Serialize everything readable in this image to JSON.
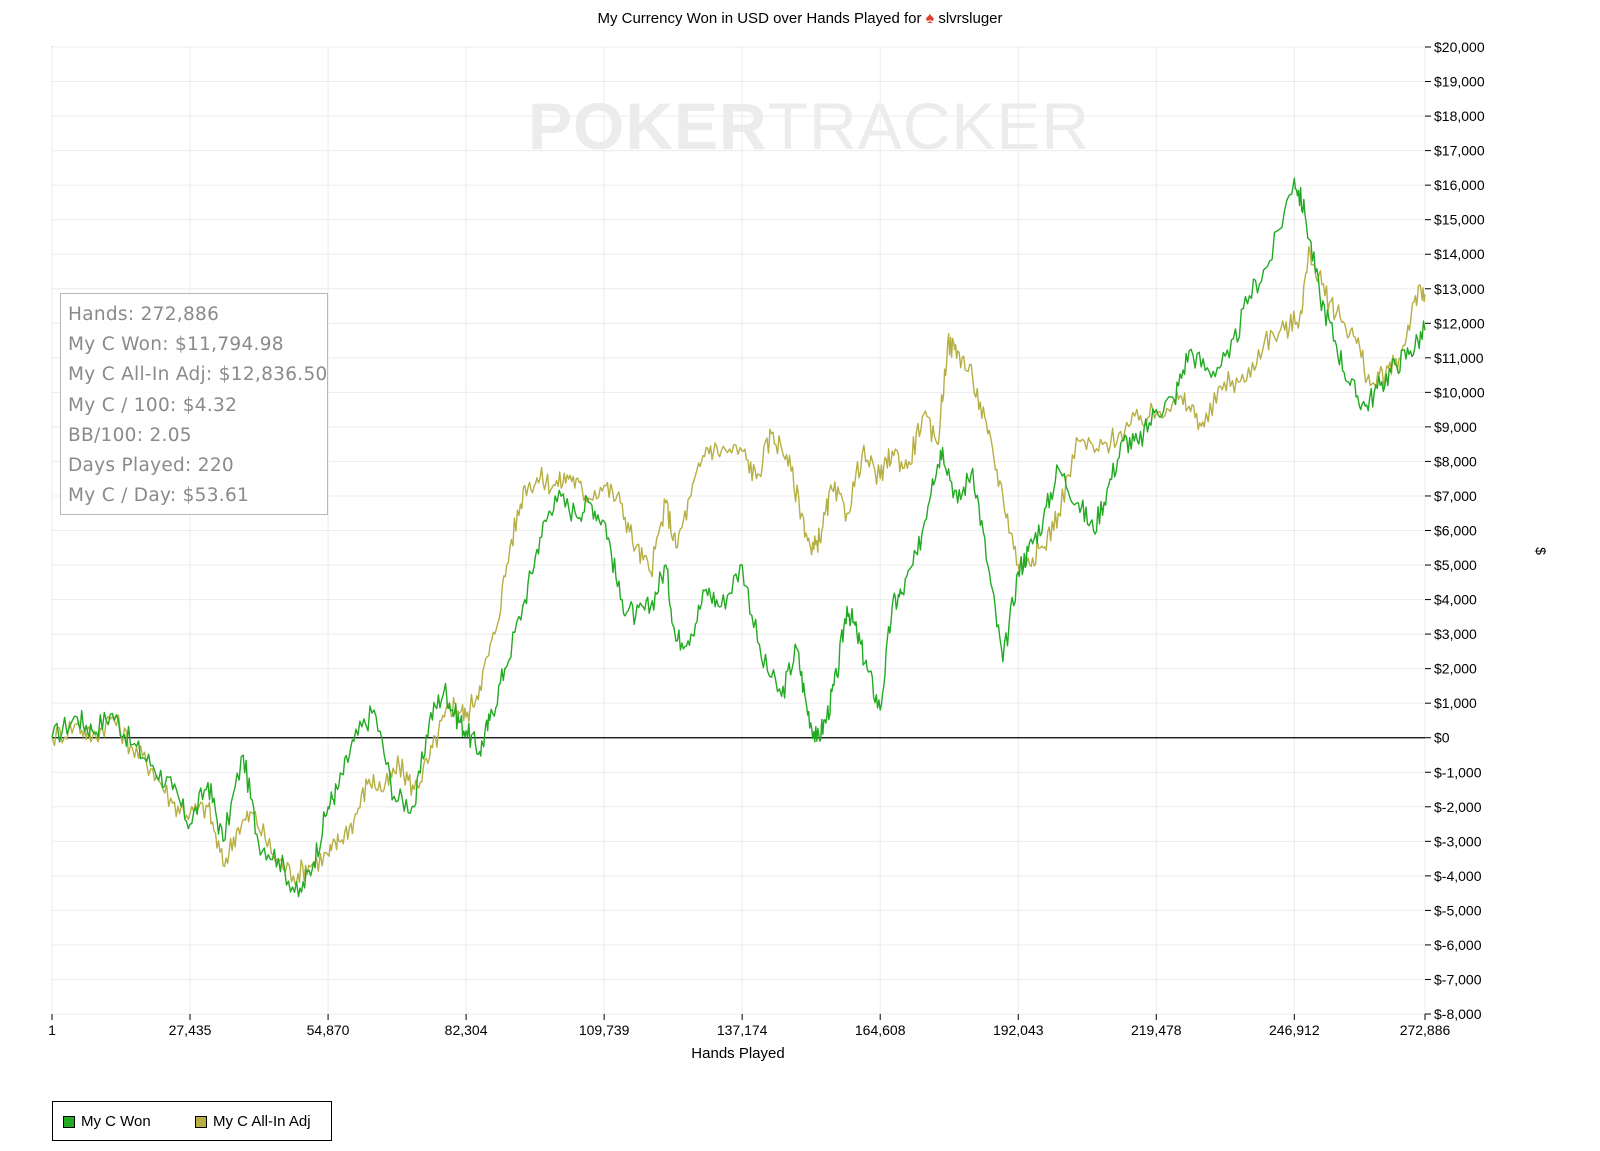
{
  "chart_data": {
    "type": "line",
    "title": "My Currency Won in USD over Hands Played for",
    "player": "slvrsluger",
    "watermark": {
      "bold": "POKER",
      "light": "TRACKER"
    },
    "xlabel": "Hands Played",
    "ylabel": "$",
    "xlim": [
      1,
      272886
    ],
    "ylim": [
      -8000,
      20000
    ],
    "x_ticks": [
      1,
      27435,
      54870,
      82304,
      109739,
      137174,
      164608,
      192043,
      219478,
      246912,
      272886
    ],
    "x_tick_labels": [
      "1",
      "27,435",
      "54,870",
      "82,304",
      "109,739",
      "137,174",
      "164,608",
      "192,043",
      "219,478",
      "246,912",
      "272,886"
    ],
    "y_ticks": [
      20000,
      19000,
      18000,
      17000,
      16000,
      15000,
      14000,
      13000,
      12000,
      11000,
      10000,
      9000,
      8000,
      7000,
      6000,
      5000,
      4000,
      3000,
      2000,
      1000,
      0,
      -1000,
      -2000,
      -3000,
      -4000,
      -5000,
      -6000,
      -7000,
      -8000
    ],
    "y_tick_labels": [
      "$20,000",
      "$19,000",
      "$18,000",
      "$17,000",
      "$16,000",
      "$15,000",
      "$14,000",
      "$13,000",
      "$12,000",
      "$11,000",
      "$10,000",
      "$9,000",
      "$8,000",
      "$7,000",
      "$6,000",
      "$5,000",
      "$4,000",
      "$3,000",
      "$2,000",
      "$1,000",
      "$0",
      "$-1,000",
      "$-2,000",
      "$-3,000",
      "$-4,000",
      "$-5,000",
      "$-6,000",
      "$-7,000",
      "$-8,000"
    ],
    "grid": true,
    "legend_position": "bottom-left",
    "series": [
      {
        "name": "My C Won",
        "color": "#22aa22",
        "x": [
          1,
          5000,
          8000,
          12000,
          16000,
          20000,
          24000,
          27435,
          31000,
          34000,
          38000,
          41000,
          45000,
          49000,
          52000,
          54870,
          57000,
          60000,
          64000,
          68000,
          72000,
          75000,
          78000,
          80000,
          82304,
          85000,
          87000,
          90000,
          94000,
          97000,
          100000,
          104000,
          107000,
          110000,
          113000,
          116000,
          119000,
          122000,
          124000,
          127000,
          130000,
          133000,
          137174,
          141000,
          145000,
          148000,
          150000,
          152000,
          154000,
          156000,
          158000,
          160000,
          162000,
          164608,
          167000,
          169000,
          172000,
          175000,
          177000,
          180000,
          183000,
          186000,
          189000,
          192043,
          194000,
          197000,
          200000,
          204000,
          207000,
          210000,
          213000,
          216000,
          219478,
          223000,
          226000,
          230000,
          234000,
          238000,
          242000,
          246912,
          249000,
          252000,
          255000,
          258000,
          261000,
          264000,
          267000,
          270000,
          272886
        ],
        "values": [
          0,
          600,
          200,
          700,
          -200,
          -800,
          -1500,
          -2500,
          -1300,
          -3000,
          -500,
          -3000,
          -3500,
          -4600,
          -3600,
          -2000,
          -1400,
          -100,
          800,
          -1700,
          -2000,
          500,
          1400,
          700,
          200,
          -400,
          500,
          2000,
          4000,
          5800,
          7000,
          6500,
          6800,
          6200,
          4000,
          3500,
          3800,
          5000,
          2800,
          3000,
          4300,
          3800,
          5000,
          2300,
          1200,
          2600,
          900,
          -100,
          600,
          1800,
          3800,
          3000,
          2000,
          800,
          3800,
          4200,
          5300,
          7500,
          8400,
          6800,
          7800,
          5000,
          2200,
          4800,
          5400,
          6300,
          7800,
          6800,
          6000,
          7300,
          8600,
          8500,
          9500,
          9800,
          11200,
          10600,
          11000,
          12800,
          13800,
          16200,
          15200,
          12800,
          11500,
          10200,
          9600,
          10200,
          10800,
          11200,
          11795
        ]
      },
      {
        "name": "My C All-In Adj",
        "color": "#b6b044",
        "x": [
          1,
          5000,
          8000,
          12000,
          16000,
          20000,
          24000,
          27435,
          31000,
          34000,
          37000,
          40000,
          44000,
          48000,
          51000,
          54870,
          57000,
          60000,
          63000,
          66000,
          69000,
          72000,
          75000,
          78000,
          80000,
          82304,
          85000,
          88000,
          91000,
          94000,
          97000,
          100000,
          103000,
          106000,
          109739,
          113000,
          116000,
          119000,
          122000,
          124000,
          127000,
          130000,
          133000,
          137174,
          140000,
          143000,
          146000,
          149000,
          151000,
          153000,
          155000,
          158000,
          161000,
          164608,
          167000,
          170000,
          173000,
          176000,
          178000,
          180000,
          183000,
          186000,
          189000,
          192043,
          194000,
          197000,
          200000,
          204000,
          208000,
          212000,
          216000,
          219478,
          223000,
          226000,
          229000,
          233000,
          237000,
          241000,
          245000,
          248000,
          250000,
          253000,
          256000,
          259000,
          262000,
          265000,
          268000,
          271000,
          272886
        ],
        "values": [
          0,
          400,
          0,
          600,
          -300,
          -900,
          -1900,
          -2200,
          -2000,
          -3700,
          -2600,
          -2200,
          -3400,
          -4000,
          -3700,
          -3400,
          -3000,
          -2400,
          -1200,
          -1500,
          -800,
          -1500,
          -600,
          600,
          1000,
          600,
          1500,
          3000,
          5500,
          7300,
          7500,
          7300,
          7600,
          7000,
          7300,
          6800,
          5500,
          4800,
          6800,
          5500,
          7000,
          8400,
          8300,
          8300,
          7500,
          8800,
          8200,
          6500,
          5300,
          6000,
          7200,
          6500,
          8200,
          7500,
          8300,
          7800,
          9300,
          8500,
          11400,
          11200,
          10400,
          8800,
          7000,
          5000,
          5200,
          5500,
          6500,
          8600,
          8300,
          8800,
          9200,
          9400,
          9800,
          9600,
          9000,
          10300,
          10300,
          11500,
          11800,
          12200,
          14100,
          12800,
          12200,
          11600,
          10200,
          10500,
          11000,
          12800,
          12837
        ]
      }
    ]
  },
  "stats": [
    "Hands: 272,886",
    "My C Won: $11,794.98",
    "My C All-In Adj: $12,836.50",
    "My C / 100: $4.32",
    "BB/100: 2.05",
    "Days Played: 220",
    "My C / Day: $53.61"
  ],
  "legend": [
    {
      "label": "My C Won",
      "color": "#22aa22"
    },
    {
      "label": "My C All-In Adj",
      "color": "#b6b044"
    }
  ]
}
